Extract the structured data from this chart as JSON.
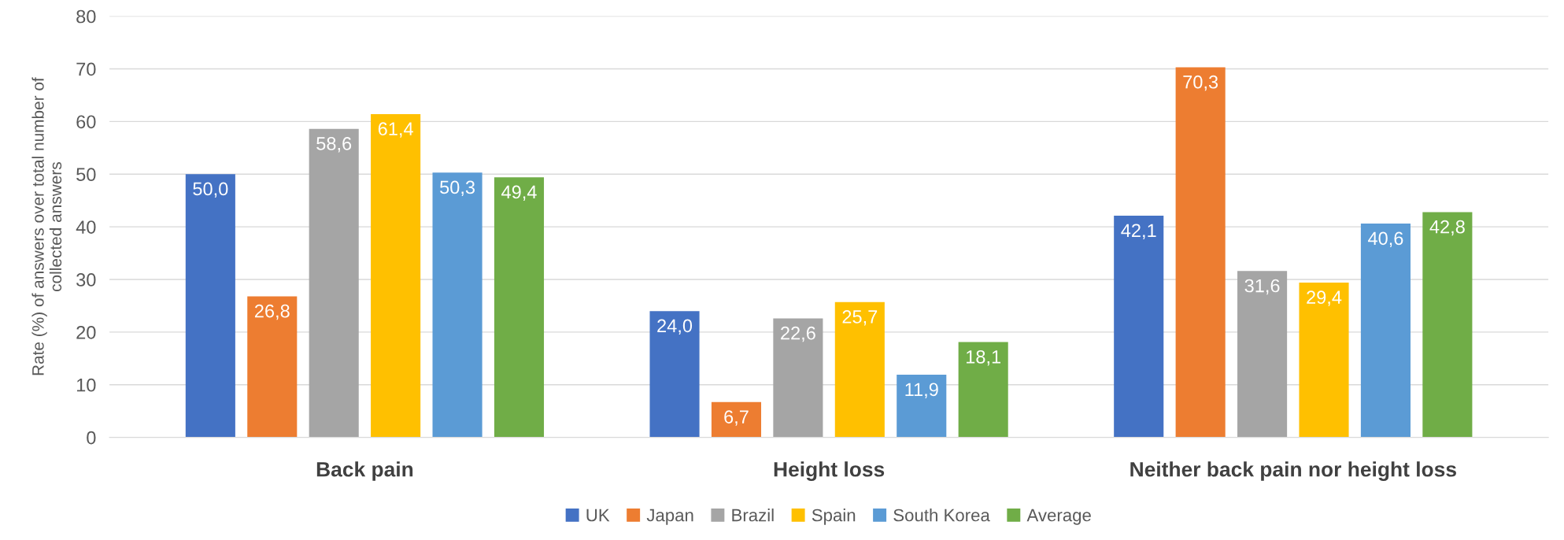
{
  "chart_data": {
    "type": "bar",
    "ylabel": "Rate (%) of answers over total number of\ncollected answers",
    "categories": [
      "Back pain",
      "Height loss",
      "Neither back pain nor height loss"
    ],
    "series": [
      {
        "name": "UK",
        "color": "#4472c4",
        "values": [
          50.0,
          24.0,
          42.1
        ],
        "value_labels": [
          "50,0",
          "24,0",
          "42,1"
        ]
      },
      {
        "name": "Japan",
        "color": "#ed7d31",
        "values": [
          26.8,
          6.7,
          70.3
        ],
        "value_labels": [
          "26,8",
          "6,7",
          "70,3"
        ]
      },
      {
        "name": "Brazil",
        "color": "#a5a5a5",
        "values": [
          58.6,
          22.6,
          31.6
        ],
        "value_labels": [
          "58,6",
          "22,6",
          "31,6"
        ]
      },
      {
        "name": "Spain",
        "color": "#ffc000",
        "values": [
          61.4,
          25.7,
          29.4
        ],
        "value_labels": [
          "61,4",
          "25,7",
          "29,4"
        ]
      },
      {
        "name": "South Korea",
        "color": "#5b9bd5",
        "values": [
          50.3,
          11.9,
          40.6
        ],
        "value_labels": [
          "50,3",
          "11,9",
          "40,6"
        ]
      },
      {
        "name": "Average",
        "color": "#70ad47",
        "values": [
          49.4,
          18.1,
          42.8
        ],
        "value_labels": [
          "49,4",
          "18,1",
          "42,8"
        ]
      }
    ],
    "ylim": [
      0,
      80
    ],
    "yticks": [
      0,
      10,
      20,
      30,
      40,
      50,
      60,
      70,
      80
    ],
    "grid": "y",
    "legend": "bottom"
  }
}
